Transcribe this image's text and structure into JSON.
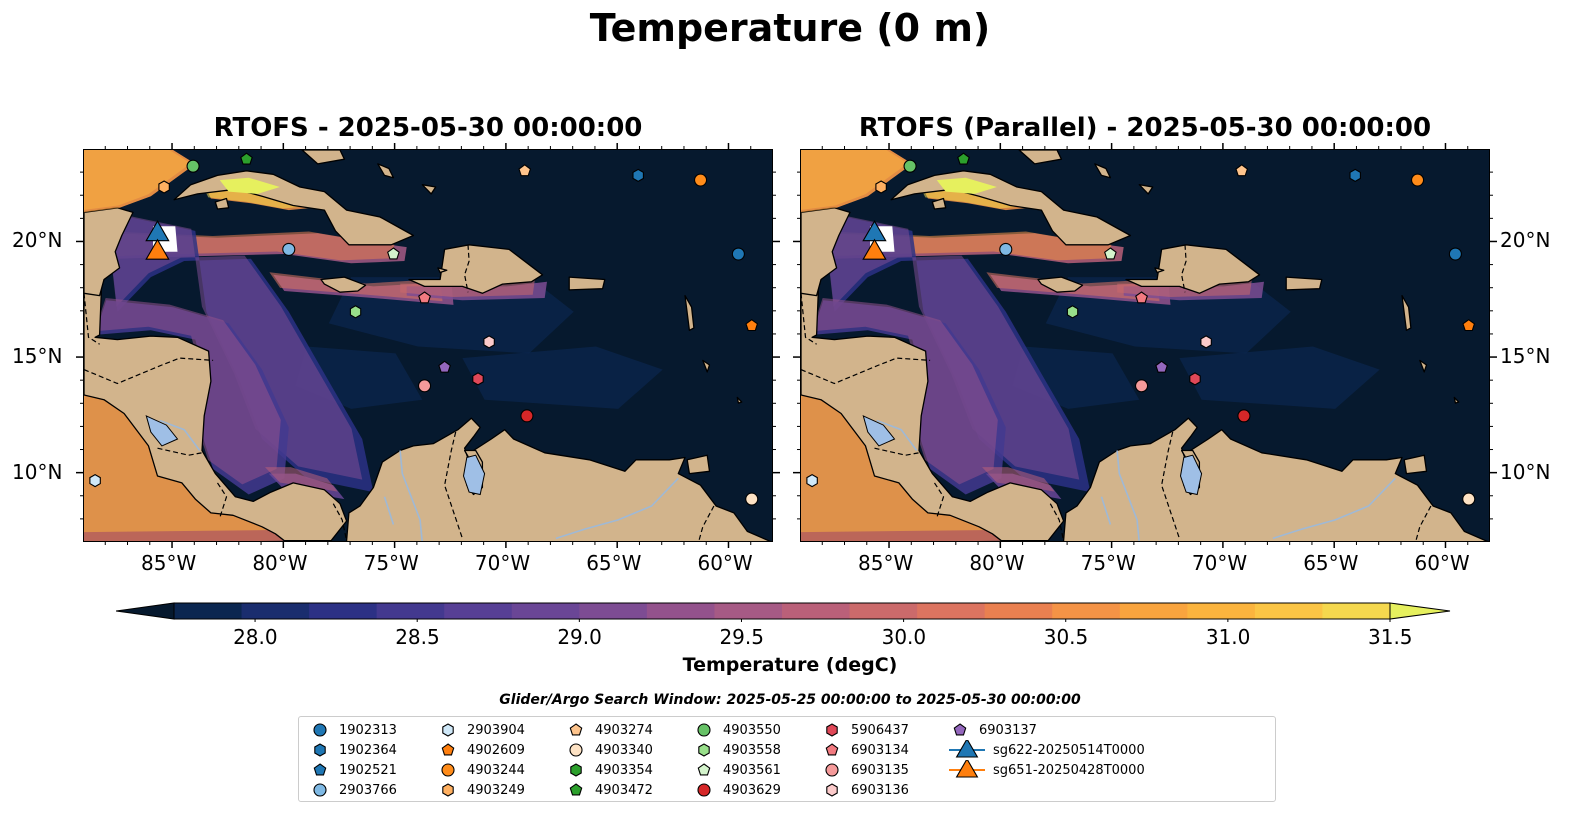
{
  "figure": {
    "suptitle": "Temperature (0 m)",
    "panels": [
      {
        "title": "RTOFS - 2025-05-30 00:00:00"
      },
      {
        "title": "RTOFS (Parallel) - 2025-05-30 00:00:00"
      }
    ]
  },
  "axes": {
    "x_ticks": [
      "85°W",
      "80°W",
      "75°W",
      "70°W",
      "65°W",
      "60°W"
    ],
    "y_ticks": [
      "20°N",
      "15°N",
      "10°N"
    ],
    "lon_range": [
      -89,
      -58
    ],
    "lat_range": [
      7,
      24
    ]
  },
  "colorbar": {
    "label": "Temperature (degC)",
    "ticks": [
      "28.0",
      "28.5",
      "29.0",
      "29.5",
      "30.0",
      "30.5",
      "31.0",
      "31.5"
    ],
    "range": [
      27.75,
      31.5
    ],
    "colors": [
      "#06192e",
      "#0b2650",
      "#1a2d6e",
      "#2c3185",
      "#43398f",
      "#573f95",
      "#6a4696",
      "#7d4c93",
      "#93528c",
      "#a65a85",
      "#ba6079",
      "#cb6a6b",
      "#dc7460",
      "#ea8050",
      "#f49346",
      "#f9a43e",
      "#fbb43e",
      "#fbc545",
      "#f5d84e",
      "#e6f05e"
    ]
  },
  "search_window": "Glider/Argo Search Window: 2025-05-25 00:00:00 to 2025-05-30 00:00:00",
  "platforms": [
    {
      "id": "1902313",
      "marker": "circle",
      "color": "#1f77b4",
      "lon": -59.6,
      "lat": 19.5
    },
    {
      "id": "1902364",
      "marker": "hexagon",
      "color": "#1f77b4",
      "lon": -64.1,
      "lat": 22.9
    },
    {
      "id": "1902521",
      "marker": "pentagon",
      "color": "#1f77b4",
      "lon": null,
      "lat": null
    },
    {
      "id": "2903766",
      "marker": "circle",
      "color": "#7fb9e4",
      "lon": -79.8,
      "lat": 19.7
    },
    {
      "id": "2903904",
      "marker": "hexagon",
      "color": "#cfe8f8",
      "lon": -88.5,
      "lat": 9.7
    },
    {
      "id": "4902609",
      "marker": "pentagon",
      "color": "#ff7f0e",
      "lon": -59,
      "lat": 16.4
    },
    {
      "id": "4903244",
      "marker": "circle",
      "color": "#ff8c1a",
      "lon": -61.3,
      "lat": 22.7
    },
    {
      "id": "4903249",
      "marker": "hexagon",
      "color": "#ffb061",
      "lon": -85.4,
      "lat": 22.4
    },
    {
      "id": "4903274",
      "marker": "pentagon",
      "color": "#fec48c",
      "lon": -69.2,
      "lat": 23.1
    },
    {
      "id": "4903340",
      "marker": "circle",
      "color": "#fde2c4",
      "lon": -59,
      "lat": 8.9
    },
    {
      "id": "4903354",
      "marker": "hexagon",
      "color": "#2ca02c",
      "lon": null,
      "lat": null
    },
    {
      "id": "4903472",
      "marker": "pentagon",
      "color": "#2ca02c",
      "lon": -81.7,
      "lat": 23.6
    },
    {
      "id": "4903550",
      "marker": "circle",
      "color": "#66c266",
      "lon": -84.1,
      "lat": 23.3
    },
    {
      "id": "4903558",
      "marker": "hexagon",
      "color": "#98df8a",
      "lon": -76.8,
      "lat": 17
    },
    {
      "id": "4903561",
      "marker": "pentagon",
      "color": "#d4f4cc",
      "lon": -75.1,
      "lat": 19.5
    },
    {
      "id": "4903629",
      "marker": "circle",
      "color": "#d62728",
      "lon": -69.1,
      "lat": 12.5
    },
    {
      "id": "5906437",
      "marker": "hexagon",
      "color": "#e04858",
      "lon": -71.3,
      "lat": 14.1
    },
    {
      "id": "6903134",
      "marker": "pentagon",
      "color": "#f27a80",
      "lon": -73.7,
      "lat": 17.6
    },
    {
      "id": "6903135",
      "marker": "circle",
      "color": "#f59a9a",
      "lon": -73.7,
      "lat": 13.8
    },
    {
      "id": "6903136",
      "marker": "hexagon",
      "color": "#fbcaca",
      "lon": -70.8,
      "lat": 15.7
    },
    {
      "id": "6903137",
      "marker": "pentagon",
      "color": "#9467bd",
      "lon": -72.8,
      "lat": 14.6
    },
    {
      "id": "sg622-20250514T0000",
      "marker": "triangle",
      "color": "#1f77b4",
      "lon": -85.7,
      "lat": 20.5
    },
    {
      "id": "sg651-20250428T0000",
      "marker": "triangle",
      "color": "#ff7f0e",
      "lon": -85.7,
      "lat": 19.7
    }
  ]
}
